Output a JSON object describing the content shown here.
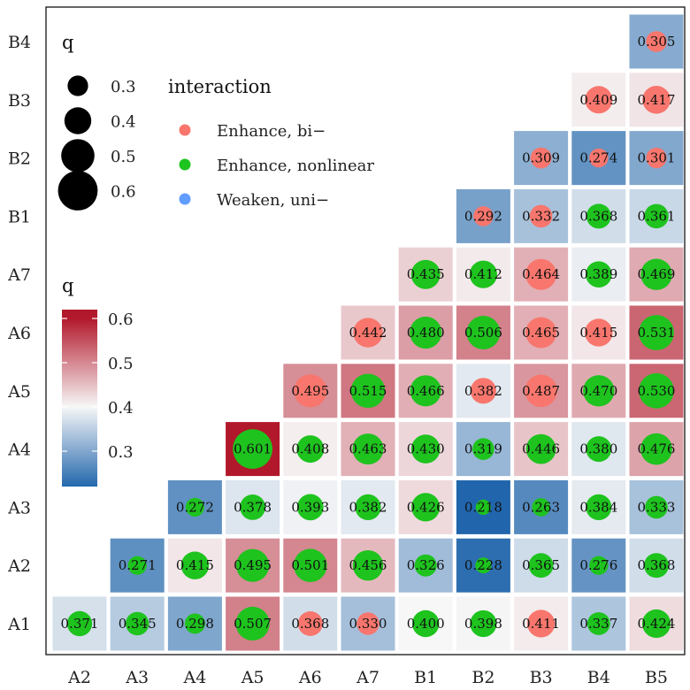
{
  "chart_data": {
    "type": "heatmap",
    "title": "",
    "x_labels": [
      "A2",
      "A3",
      "A4",
      "A5",
      "A6",
      "A7",
      "B1",
      "B2",
      "B3",
      "B4",
      "B5"
    ],
    "y_labels": [
      "A1",
      "A2",
      "A3",
      "A4",
      "A5",
      "A6",
      "A7",
      "B1",
      "B2",
      "B3",
      "B4"
    ],
    "color_scale": {
      "title": "q",
      "range": [
        0.218,
        0.601
      ],
      "ticks": [
        "0.6",
        "0.5",
        "0.4",
        "0.3"
      ],
      "tick_values": [
        0.6,
        0.5,
        0.4,
        0.3
      ],
      "low_color": "#2166ac",
      "mid_color": "#f7f7f7",
      "high_color": "#b2182b",
      "mid_value": 0.4
    },
    "size_legend": {
      "title": "q",
      "items": [
        {
          "label": "0.3",
          "value": 0.3
        },
        {
          "label": "0.4",
          "value": 0.4
        },
        {
          "label": "0.5",
          "value": 0.5
        },
        {
          "label": "0.6",
          "value": 0.6
        }
      ]
    },
    "interaction_legend": {
      "title": "interaction",
      "items": [
        {
          "key": "bi",
          "label": "Enhance, bi−",
          "color": "#f8766d"
        },
        {
          "key": "nl",
          "label": "Enhance, nonlinear",
          "color": "#1ec31e"
        },
        {
          "key": "uni",
          "label": "Weaken, uni−",
          "color": "#619cff"
        }
      ]
    },
    "cells": [
      {
        "row": "A1",
        "col": "A2",
        "value": 0.371,
        "label": "0.371",
        "type": "nl"
      },
      {
        "row": "A1",
        "col": "A3",
        "value": 0.345,
        "label": "0.345",
        "type": "nl"
      },
      {
        "row": "A1",
        "col": "A4",
        "value": 0.298,
        "label": "0.298",
        "type": "nl"
      },
      {
        "row": "A1",
        "col": "A5",
        "value": 0.507,
        "label": "0.507",
        "type": "nl"
      },
      {
        "row": "A1",
        "col": "A6",
        "value": 0.368,
        "label": "0.368",
        "type": "bi"
      },
      {
        "row": "A1",
        "col": "A7",
        "value": 0.33,
        "label": "0.330",
        "type": "bi"
      },
      {
        "row": "A1",
        "col": "B1",
        "value": 0.4,
        "label": "0.400",
        "type": "nl"
      },
      {
        "row": "A1",
        "col": "B2",
        "value": 0.398,
        "label": "0.398",
        "type": "nl"
      },
      {
        "row": "A1",
        "col": "B3",
        "value": 0.411,
        "label": "0.411",
        "type": "bi"
      },
      {
        "row": "A1",
        "col": "B4",
        "value": 0.337,
        "label": "0.337",
        "type": "nl"
      },
      {
        "row": "A1",
        "col": "B5",
        "value": 0.424,
        "label": "0.424",
        "type": "nl"
      },
      {
        "row": "A2",
        "col": "A3",
        "value": 0.271,
        "label": "0.271",
        "type": "nl"
      },
      {
        "row": "A2",
        "col": "A4",
        "value": 0.415,
        "label": "0.415",
        "type": "nl"
      },
      {
        "row": "A2",
        "col": "A5",
        "value": 0.495,
        "label": "0.495",
        "type": "nl"
      },
      {
        "row": "A2",
        "col": "A6",
        "value": 0.501,
        "label": "0.501",
        "type": "nl"
      },
      {
        "row": "A2",
        "col": "A7",
        "value": 0.456,
        "label": "0.456",
        "type": "nl"
      },
      {
        "row": "A2",
        "col": "B1",
        "value": 0.326,
        "label": "0.326",
        "type": "nl"
      },
      {
        "row": "A2",
        "col": "B2",
        "value": 0.228,
        "label": "0.228",
        "type": "nl"
      },
      {
        "row": "A2",
        "col": "B3",
        "value": 0.365,
        "label": "0.365",
        "type": "nl"
      },
      {
        "row": "A2",
        "col": "B4",
        "value": 0.276,
        "label": "0.276",
        "type": "nl"
      },
      {
        "row": "A2",
        "col": "B5",
        "value": 0.368,
        "label": "0.368",
        "type": "nl"
      },
      {
        "row": "A3",
        "col": "A4",
        "value": 0.272,
        "label": "0.272",
        "type": "nl"
      },
      {
        "row": "A3",
        "col": "A5",
        "value": 0.378,
        "label": "0.378",
        "type": "nl"
      },
      {
        "row": "A3",
        "col": "A6",
        "value": 0.393,
        "label": "0.393",
        "type": "nl"
      },
      {
        "row": "A3",
        "col": "A7",
        "value": 0.382,
        "label": "0.382",
        "type": "nl"
      },
      {
        "row": "A3",
        "col": "B1",
        "value": 0.426,
        "label": "0.426",
        "type": "nl"
      },
      {
        "row": "A3",
        "col": "B2",
        "value": 0.218,
        "label": "0.218",
        "type": "nl"
      },
      {
        "row": "A3",
        "col": "B3",
        "value": 0.263,
        "label": "0.263",
        "type": "nl"
      },
      {
        "row": "A3",
        "col": "B4",
        "value": 0.384,
        "label": "0.384",
        "type": "nl"
      },
      {
        "row": "A3",
        "col": "B5",
        "value": 0.333,
        "label": "0.333",
        "type": "nl"
      },
      {
        "row": "A4",
        "col": "A5",
        "value": 0.601,
        "label": "0.601",
        "type": "nl"
      },
      {
        "row": "A4",
        "col": "A6",
        "value": 0.408,
        "label": "0.408",
        "type": "nl"
      },
      {
        "row": "A4",
        "col": "A7",
        "value": 0.463,
        "label": "0.463",
        "type": "nl"
      },
      {
        "row": "A4",
        "col": "B1",
        "value": 0.43,
        "label": "0.430",
        "type": "nl"
      },
      {
        "row": "A4",
        "col": "B2",
        "value": 0.319,
        "label": "0.319",
        "type": "nl"
      },
      {
        "row": "A4",
        "col": "B3",
        "value": 0.446,
        "label": "0.446",
        "type": "nl"
      },
      {
        "row": "A4",
        "col": "B4",
        "value": 0.38,
        "label": "0.380",
        "type": "nl"
      },
      {
        "row": "A4",
        "col": "B5",
        "value": 0.476,
        "label": "0.476",
        "type": "nl"
      },
      {
        "row": "A5",
        "col": "A6",
        "value": 0.495,
        "label": "0.495",
        "type": "bi"
      },
      {
        "row": "A5",
        "col": "A7",
        "value": 0.515,
        "label": "0.515",
        "type": "nl"
      },
      {
        "row": "A5",
        "col": "B1",
        "value": 0.466,
        "label": "0.466",
        "type": "nl"
      },
      {
        "row": "A5",
        "col": "B2",
        "value": 0.382,
        "label": "0.382",
        "type": "bi"
      },
      {
        "row": "A5",
        "col": "B3",
        "value": 0.487,
        "label": "0.487",
        "type": "bi"
      },
      {
        "row": "A5",
        "col": "B4",
        "value": 0.47,
        "label": "0.470",
        "type": "nl"
      },
      {
        "row": "A5",
        "col": "B5",
        "value": 0.53,
        "label": "0.530",
        "type": "nl"
      },
      {
        "row": "A6",
        "col": "A7",
        "value": 0.442,
        "label": "0.442",
        "type": "bi"
      },
      {
        "row": "A6",
        "col": "B1",
        "value": 0.48,
        "label": "0.480",
        "type": "nl"
      },
      {
        "row": "A6",
        "col": "B2",
        "value": 0.506,
        "label": "0.506",
        "type": "nl"
      },
      {
        "row": "A6",
        "col": "B3",
        "value": 0.465,
        "label": "0.465",
        "type": "bi"
      },
      {
        "row": "A6",
        "col": "B4",
        "value": 0.415,
        "label": "0.415",
        "type": "bi"
      },
      {
        "row": "A6",
        "col": "B5",
        "value": 0.531,
        "label": "0.531",
        "type": "nl"
      },
      {
        "row": "A7",
        "col": "B1",
        "value": 0.435,
        "label": "0.435",
        "type": "nl"
      },
      {
        "row": "A7",
        "col": "B2",
        "value": 0.412,
        "label": "0.412",
        "type": "nl"
      },
      {
        "row": "A7",
        "col": "B3",
        "value": 0.464,
        "label": "0.464",
        "type": "bi"
      },
      {
        "row": "A7",
        "col": "B4",
        "value": 0.389,
        "label": "0.389",
        "type": "nl"
      },
      {
        "row": "A7",
        "col": "B5",
        "value": 0.469,
        "label": "0.469",
        "type": "nl"
      },
      {
        "row": "B1",
        "col": "B2",
        "value": 0.292,
        "label": "0.292",
        "type": "bi"
      },
      {
        "row": "B1",
        "col": "B3",
        "value": 0.332,
        "label": "0.332",
        "type": "bi"
      },
      {
        "row": "B1",
        "col": "B4",
        "value": 0.368,
        "label": "0.368",
        "type": "nl"
      },
      {
        "row": "B1",
        "col": "B5",
        "value": 0.361,
        "label": "0.361",
        "type": "nl"
      },
      {
        "row": "B2",
        "col": "B3",
        "value": 0.309,
        "label": "0.309",
        "type": "bi"
      },
      {
        "row": "B2",
        "col": "B4",
        "value": 0.274,
        "label": "0.274",
        "type": "bi"
      },
      {
        "row": "B2",
        "col": "B5",
        "value": 0.301,
        "label": "0.301",
        "type": "bi"
      },
      {
        "row": "B3",
        "col": "B4",
        "value": 0.409,
        "label": "0.409",
        "type": "bi"
      },
      {
        "row": "B3",
        "col": "B5",
        "value": 0.417,
        "label": "0.417",
        "type": "bi"
      },
      {
        "row": "B4",
        "col": "B5",
        "value": 0.305,
        "label": "0.305",
        "type": "bi"
      }
    ]
  }
}
